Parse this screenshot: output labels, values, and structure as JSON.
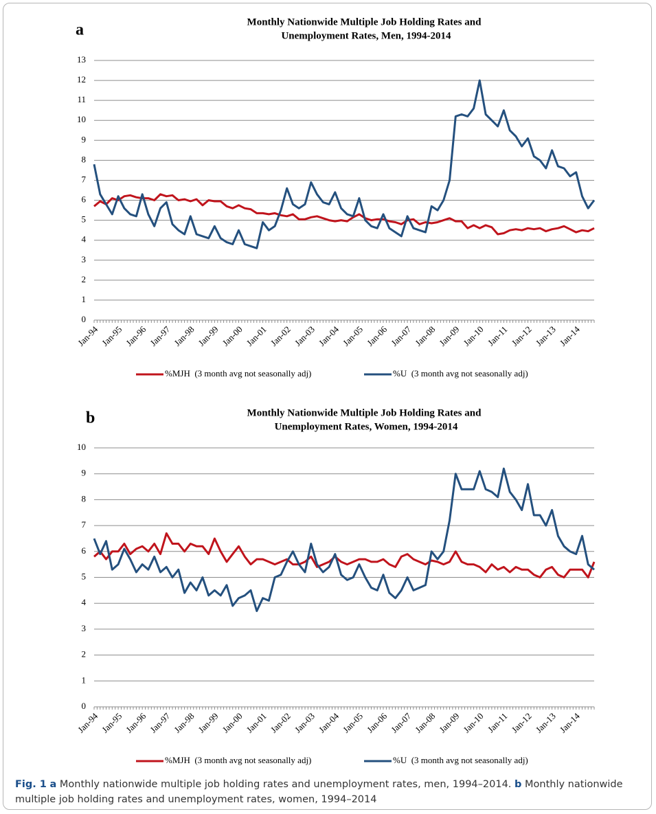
{
  "chart_data": [
    {
      "type": "line",
      "panel_label": "a",
      "title": [
        "Monthly Nationwide Multiple Job Holding Rates and",
        "Unemployment Rates, Men, 1994-2014"
      ],
      "categories": [
        "Jan-94",
        null,
        null,
        null,
        "Jan-95",
        null,
        null,
        null,
        "Jan-96",
        null,
        null,
        null,
        "Jan-97",
        null,
        null,
        null,
        "Jan-98",
        null,
        null,
        null,
        "Jan-99",
        null,
        null,
        null,
        "Jan-00",
        null,
        null,
        null,
        "Jan-01",
        null,
        null,
        null,
        "Jan-02",
        null,
        null,
        null,
        "Jan-03",
        null,
        null,
        null,
        "Jan-04",
        null,
        null,
        null,
        "Jan-05",
        null,
        null,
        null,
        "Jan-06",
        null,
        null,
        null,
        "Jan-07",
        null,
        null,
        null,
        "Jan-08",
        null,
        null,
        null,
        "Jan-09",
        null,
        null,
        null,
        "Jan-10",
        null,
        null,
        null,
        "Jan-11",
        null,
        null,
        null,
        "Jan-12",
        null,
        null,
        null,
        "Jan-13",
        null,
        null,
        null,
        "Jan-14",
        null,
        null,
        null
      ],
      "series": [
        {
          "name": "%MJH  (3 month avg not seasonally adj)",
          "color": "#c0141c",
          "values": [
            5.7,
            5.95,
            5.8,
            6.1,
            6.0,
            6.2,
            6.25,
            6.15,
            6.1,
            6.1,
            6.0,
            6.3,
            6.2,
            6.25,
            6.0,
            6.05,
            5.95,
            6.05,
            5.75,
            6.0,
            5.95,
            5.95,
            5.7,
            5.6,
            5.75,
            5.6,
            5.55,
            5.35,
            5.35,
            5.3,
            5.35,
            5.25,
            5.2,
            5.3,
            5.05,
            5.05,
            5.15,
            5.2,
            5.1,
            5.0,
            4.95,
            5.0,
            4.95,
            5.15,
            5.3,
            5.1,
            5.0,
            5.05,
            5.05,
            4.95,
            4.9,
            4.8,
            5.0,
            5.05,
            4.8,
            4.9,
            4.85,
            4.9,
            5.0,
            5.1,
            4.95,
            4.95,
            4.6,
            4.75,
            4.6,
            4.75,
            4.65,
            4.3,
            4.35,
            4.5,
            4.55,
            4.5,
            4.6,
            4.55,
            4.6,
            4.45,
            4.55,
            4.6,
            4.7,
            4.55,
            4.4,
            4.5,
            4.45,
            4.6
          ]
        },
        {
          "name": "%U  (3 month avg not seasonally adj)",
          "color": "#24507e",
          "values": [
            7.8,
            6.3,
            5.8,
            5.3,
            6.2,
            5.6,
            5.3,
            5.2,
            6.3,
            5.3,
            4.7,
            5.6,
            5.9,
            4.8,
            4.5,
            4.3,
            5.2,
            4.3,
            4.2,
            4.1,
            4.7,
            4.1,
            3.9,
            3.8,
            4.5,
            3.8,
            3.7,
            3.6,
            4.9,
            4.5,
            4.7,
            5.5,
            6.6,
            5.8,
            5.6,
            5.8,
            6.9,
            6.3,
            5.9,
            5.8,
            6.4,
            5.6,
            5.3,
            5.2,
            6.1,
            5.0,
            4.7,
            4.6,
            5.3,
            4.6,
            4.4,
            4.2,
            5.2,
            4.6,
            4.5,
            4.4,
            5.7,
            5.5,
            6.0,
            7.0,
            10.2,
            10.3,
            10.2,
            10.6,
            12.0,
            10.3,
            10.0,
            9.7,
            10.5,
            9.5,
            9.2,
            8.7,
            9.1,
            8.2,
            8.0,
            7.6,
            8.5,
            7.7,
            7.6,
            7.2,
            7.4,
            6.2,
            5.6,
            6.0
          ]
        }
      ],
      "ylim": [
        0,
        13
      ],
      "yticks": [
        0,
        1,
        2,
        3,
        4,
        5,
        6,
        7,
        8,
        9,
        10,
        11,
        12,
        13
      ],
      "grid": true,
      "legend": "bottom"
    },
    {
      "type": "line",
      "panel_label": "b",
      "title": [
        "Monthly Nationwide Multiple Job Holding Rates and",
        "Unemployment Rates, Women, 1994-2014"
      ],
      "categories": [
        "Jan-94",
        null,
        null,
        null,
        "Jan-95",
        null,
        null,
        null,
        "Jan-96",
        null,
        null,
        null,
        "Jan-97",
        null,
        null,
        null,
        "Jan-98",
        null,
        null,
        null,
        "Jan-99",
        null,
        null,
        null,
        "Jan-00",
        null,
        null,
        null,
        "Jan-01",
        null,
        null,
        null,
        "Jan-02",
        null,
        null,
        null,
        "Jan-03",
        null,
        null,
        null,
        "Jan-04",
        null,
        null,
        null,
        "Jan-05",
        null,
        null,
        null,
        "Jan-06",
        null,
        null,
        null,
        "Jan-07",
        null,
        null,
        null,
        "Jan-08",
        null,
        null,
        null,
        "Jan-09",
        null,
        null,
        null,
        "Jan-10",
        null,
        null,
        null,
        "Jan-11",
        null,
        null,
        null,
        "Jan-12",
        null,
        null,
        null,
        "Jan-13",
        null,
        null,
        null,
        "Jan-14",
        null,
        null,
        null
      ],
      "series": [
        {
          "name": "%MJH  (3 month avg not seasonally adj)",
          "color": "#c0141c",
          "values": [
            5.8,
            6.0,
            5.7,
            6.0,
            6.0,
            6.3,
            5.9,
            6.1,
            6.2,
            6.0,
            6.3,
            5.9,
            6.7,
            6.3,
            6.3,
            6.0,
            6.3,
            6.2,
            6.2,
            5.9,
            6.5,
            6.0,
            5.6,
            5.9,
            6.2,
            5.8,
            5.5,
            5.7,
            5.7,
            5.6,
            5.5,
            5.6,
            5.7,
            5.5,
            5.5,
            5.6,
            5.8,
            5.4,
            5.5,
            5.6,
            5.8,
            5.6,
            5.5,
            5.6,
            5.7,
            5.7,
            5.6,
            5.6,
            5.7,
            5.5,
            5.4,
            5.8,
            5.9,
            5.7,
            5.6,
            5.5,
            5.65,
            5.6,
            5.5,
            5.6,
            6.0,
            5.6,
            5.5,
            5.5,
            5.4,
            5.2,
            5.5,
            5.3,
            5.4,
            5.2,
            5.4,
            5.3,
            5.3,
            5.1,
            5.0,
            5.3,
            5.4,
            5.1,
            5.0,
            5.3,
            5.3,
            5.3,
            5.0,
            5.6
          ]
        },
        {
          "name": "%U  (3 month avg not seasonally adj)",
          "color": "#24507e",
          "values": [
            6.5,
            5.9,
            6.4,
            5.3,
            5.5,
            6.1,
            5.7,
            5.2,
            5.5,
            5.3,
            5.8,
            5.2,
            5.4,
            5.0,
            5.3,
            4.4,
            4.8,
            4.5,
            5.0,
            4.3,
            4.5,
            4.3,
            4.7,
            3.9,
            4.2,
            4.3,
            4.5,
            3.7,
            4.2,
            4.1,
            5.0,
            5.1,
            5.6,
            6.0,
            5.5,
            5.2,
            6.3,
            5.5,
            5.2,
            5.4,
            5.9,
            5.1,
            4.9,
            5.0,
            5.5,
            5.0,
            4.6,
            4.5,
            5.1,
            4.4,
            4.2,
            4.5,
            5.0,
            4.5,
            4.6,
            4.7,
            6.0,
            5.7,
            6.0,
            7.2,
            9.0,
            8.4,
            8.4,
            8.4,
            9.1,
            8.4,
            8.3,
            8.1,
            9.2,
            8.3,
            8.0,
            7.6,
            8.6,
            7.4,
            7.4,
            7.0,
            7.6,
            6.6,
            6.2,
            6.0,
            5.9,
            6.6,
            5.5,
            5.3
          ]
        }
      ],
      "ylim": [
        0,
        10
      ],
      "yticks": [
        0,
        1,
        2,
        3,
        4,
        5,
        6,
        7,
        8,
        9,
        10
      ],
      "grid": true,
      "legend": "bottom"
    }
  ],
  "caption": {
    "fig_label": "Fig. 1",
    "a_label": "a",
    "a_text": "Monthly nationwide multiple job holding rates and unemployment rates, men, 1994–2014.",
    "b_label": "b",
    "b_text": "Monthly nationwide multiple job holding rates and unemployment rates, women, 1994–2014"
  }
}
